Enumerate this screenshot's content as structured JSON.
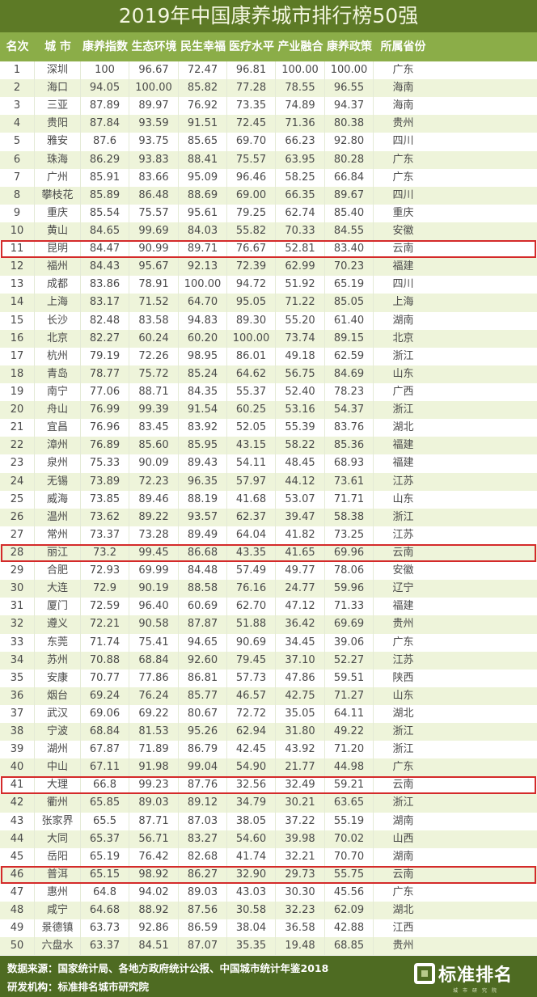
{
  "title": "2019年中国康养城市排行榜50强",
  "colors": {
    "title_bg": "#5d7a26",
    "header_bg": "#8bad48",
    "row_alt": "#eef4da",
    "highlight": "#d42a2a",
    "footer_bg": "#4e6b22"
  },
  "chart_data": {
    "type": "table",
    "title": "2019年中国康养城市排行榜50强",
    "columns": [
      "名次",
      "城 市",
      "康养指数",
      "生态环境",
      "民生幸福",
      "医疗水平",
      "产业融合",
      "康养政策",
      "所属省份"
    ],
    "highlighted_ranks": [
      11,
      28,
      41,
      46
    ],
    "rows": [
      [
        "1",
        "深圳",
        "100",
        "96.67",
        "72.47",
        "96.81",
        "100.00",
        "100.00",
        "广东"
      ],
      [
        "2",
        "海口",
        "94.05",
        "100.00",
        "85.82",
        "77.28",
        "78.55",
        "96.55",
        "海南"
      ],
      [
        "3",
        "三亚",
        "87.89",
        "89.97",
        "76.92",
        "73.35",
        "74.89",
        "94.37",
        "海南"
      ],
      [
        "4",
        "贵阳",
        "87.84",
        "93.59",
        "91.51",
        "72.45",
        "71.36",
        "80.38",
        "贵州"
      ],
      [
        "5",
        "雅安",
        "87.6",
        "93.75",
        "85.65",
        "69.70",
        "66.23",
        "92.80",
        "四川"
      ],
      [
        "6",
        "珠海",
        "86.29",
        "93.83",
        "88.41",
        "75.57",
        "63.95",
        "80.28",
        "广东"
      ],
      [
        "7",
        "广州",
        "85.91",
        "83.66",
        "95.09",
        "96.46",
        "58.25",
        "66.84",
        "广东"
      ],
      [
        "8",
        "攀枝花",
        "85.89",
        "86.48",
        "88.69",
        "69.00",
        "66.35",
        "89.67",
        "四川"
      ],
      [
        "9",
        "重庆",
        "85.54",
        "75.57",
        "95.61",
        "79.25",
        "62.74",
        "85.40",
        "重庆"
      ],
      [
        "10",
        "黄山",
        "84.65",
        "99.69",
        "84.03",
        "55.82",
        "70.33",
        "84.55",
        "安徽"
      ],
      [
        "11",
        "昆明",
        "84.47",
        "90.99",
        "89.71",
        "76.67",
        "52.81",
        "83.40",
        "云南"
      ],
      [
        "12",
        "福州",
        "84.43",
        "95.67",
        "92.13",
        "72.39",
        "62.99",
        "70.23",
        "福建"
      ],
      [
        "13",
        "成都",
        "83.86",
        "78.91",
        "100.00",
        "94.72",
        "51.92",
        "65.19",
        "四川"
      ],
      [
        "14",
        "上海",
        "83.17",
        "71.52",
        "64.70",
        "95.05",
        "71.22",
        "85.05",
        "上海"
      ],
      [
        "15",
        "长沙",
        "82.48",
        "83.58",
        "94.83",
        "89.30",
        "55.20",
        "61.40",
        "湖南"
      ],
      [
        "16",
        "北京",
        "82.27",
        "60.24",
        "60.20",
        "100.00",
        "73.74",
        "89.15",
        "北京"
      ],
      [
        "17",
        "杭州",
        "79.19",
        "72.26",
        "98.95",
        "86.01",
        "49.18",
        "62.59",
        "浙江"
      ],
      [
        "18",
        "青岛",
        "78.77",
        "75.72",
        "85.24",
        "64.62",
        "56.75",
        "84.69",
        "山东"
      ],
      [
        "19",
        "南宁",
        "77.06",
        "88.71",
        "84.35",
        "55.37",
        "52.40",
        "78.23",
        "广西"
      ],
      [
        "20",
        "舟山",
        "76.99",
        "99.39",
        "91.54",
        "60.25",
        "53.16",
        "54.37",
        "浙江"
      ],
      [
        "21",
        "宜昌",
        "76.96",
        "83.45",
        "83.92",
        "52.05",
        "55.39",
        "83.76",
        "湖北"
      ],
      [
        "22",
        "漳州",
        "76.89",
        "85.60",
        "85.95",
        "43.15",
        "58.22",
        "85.36",
        "福建"
      ],
      [
        "23",
        "泉州",
        "75.33",
        "90.09",
        "89.43",
        "54.11",
        "48.45",
        "68.93",
        "福建"
      ],
      [
        "24",
        "无锡",
        "73.89",
        "72.23",
        "96.35",
        "57.97",
        "44.12",
        "73.61",
        "江苏"
      ],
      [
        "25",
        "威海",
        "73.85",
        "89.46",
        "88.19",
        "41.68",
        "53.07",
        "71.71",
        "山东"
      ],
      [
        "26",
        "温州",
        "73.62",
        "89.22",
        "93.57",
        "62.37",
        "39.47",
        "58.38",
        "浙江"
      ],
      [
        "27",
        "常州",
        "73.37",
        "73.28",
        "89.49",
        "64.04",
        "41.82",
        "73.25",
        "江苏"
      ],
      [
        "28",
        "丽江",
        "73.2",
        "99.45",
        "86.68",
        "43.35",
        "41.65",
        "69.96",
        "云南"
      ],
      [
        "29",
        "合肥",
        "72.93",
        "69.99",
        "84.48",
        "57.49",
        "49.77",
        "78.06",
        "安徽"
      ],
      [
        "30",
        "大连",
        "72.9",
        "90.19",
        "88.58",
        "76.16",
        "24.77",
        "59.96",
        "辽宁"
      ],
      [
        "31",
        "厦门",
        "72.59",
        "96.40",
        "60.69",
        "62.70",
        "47.12",
        "71.33",
        "福建"
      ],
      [
        "32",
        "遵义",
        "72.21",
        "90.58",
        "87.87",
        "51.88",
        "36.42",
        "69.69",
        "贵州"
      ],
      [
        "33",
        "东莞",
        "71.74",
        "75.41",
        "94.65",
        "90.69",
        "34.45",
        "39.06",
        "广东"
      ],
      [
        "34",
        "苏州",
        "70.88",
        "68.84",
        "92.60",
        "79.45",
        "37.10",
        "52.27",
        "江苏"
      ],
      [
        "35",
        "安康",
        "70.77",
        "77.86",
        "86.81",
        "57.73",
        "47.86",
        "59.51",
        "陕西"
      ],
      [
        "36",
        "烟台",
        "69.24",
        "76.24",
        "85.77",
        "46.57",
        "42.75",
        "71.27",
        "山东"
      ],
      [
        "37",
        "武汉",
        "69.06",
        "69.22",
        "80.67",
        "72.72",
        "35.05",
        "64.11",
        "湖北"
      ],
      [
        "38",
        "宁波",
        "68.84",
        "81.53",
        "95.26",
        "62.94",
        "31.80",
        "49.22",
        "浙江"
      ],
      [
        "39",
        "湖州",
        "67.87",
        "71.89",
        "86.79",
        "42.45",
        "43.92",
        "71.20",
        "浙江"
      ],
      [
        "40",
        "中山",
        "67.11",
        "91.98",
        "99.04",
        "54.90",
        "21.77",
        "44.98",
        "广东"
      ],
      [
        "41",
        "大理",
        "66.8",
        "99.23",
        "87.76",
        "32.56",
        "32.49",
        "59.21",
        "云南"
      ],
      [
        "42",
        "衢州",
        "65.85",
        "89.03",
        "89.12",
        "34.79",
        "30.21",
        "63.65",
        "浙江"
      ],
      [
        "43",
        "张家界",
        "65.5",
        "87.71",
        "87.03",
        "38.05",
        "37.22",
        "55.19",
        "湖南"
      ],
      [
        "44",
        "大同",
        "65.37",
        "56.71",
        "83.27",
        "54.60",
        "39.98",
        "70.02",
        "山西"
      ],
      [
        "45",
        "岳阳",
        "65.19",
        "76.42",
        "82.68",
        "41.74",
        "32.21",
        "70.70",
        "湖南"
      ],
      [
        "46",
        "普洱",
        "65.15",
        "98.92",
        "86.27",
        "32.90",
        "29.73",
        "55.75",
        "云南"
      ],
      [
        "47",
        "惠州",
        "64.8",
        "94.02",
        "89.03",
        "43.03",
        "30.30",
        "45.56",
        "广东"
      ],
      [
        "48",
        "咸宁",
        "64.68",
        "88.92",
        "87.56",
        "30.58",
        "32.23",
        "62.09",
        "湖北"
      ],
      [
        "49",
        "景德镇",
        "63.73",
        "92.86",
        "86.59",
        "38.04",
        "36.58",
        "42.88",
        "江西"
      ],
      [
        "50",
        "六盘水",
        "63.37",
        "84.51",
        "87.07",
        "35.35",
        "19.48",
        "68.85",
        "贵州"
      ]
    ]
  },
  "footer": {
    "source": "数据来源：国家统计局、各地方政府统计公报、中国城市统计年鉴2018",
    "institute": "研发机构：标准排名城市研究院",
    "logo_text": "标准排名",
    "logo_sub": "城市研究院"
  }
}
